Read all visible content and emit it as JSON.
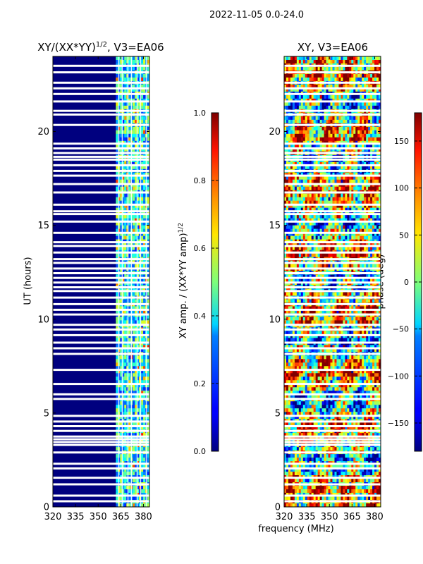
{
  "figure": {
    "suptitle": "2022-11-05 0.0-24.0"
  },
  "chart_data": [
    {
      "type": "heatmap",
      "name": "amplitude-panel",
      "title_main": "XY/(XX*YY)",
      "title_sup": "1/2",
      "title_rest": ", V3=EA06",
      "ylabel": "UT (hours)",
      "xlabel": "",
      "xlim": [
        320,
        384
      ],
      "ylim": [
        0,
        24
      ],
      "xticks": [
        320,
        335,
        350,
        365,
        380
      ],
      "yticks": [
        0,
        5,
        10,
        15,
        20
      ],
      "colormap": "jet",
      "colorbar": {
        "label_main": "XY amp. / (XX*YY amp)",
        "label_sup": "1/2",
        "range": [
          0.0,
          1.0
        ],
        "ticks": [
          "0.0",
          "0.2",
          "0.4",
          "0.6",
          "0.8",
          "1.0"
        ],
        "tick_values": [
          0.0,
          0.2,
          0.4,
          0.6,
          0.8,
          1.0
        ]
      },
      "band_edges_mhz": [
        361,
        383
      ],
      "flagged_ut_hours": [
        0.3,
        0.6,
        1.2,
        1.55,
        2.05,
        2.3,
        2.9,
        3.3,
        3.45,
        3.6,
        3.75,
        4.05,
        4.3,
        4.55,
        4.85,
        5.75,
        6.0,
        6.55,
        7.3,
        8.15,
        8.45,
        8.75,
        9.15,
        9.45,
        9.7,
        10.25,
        10.5,
        10.8,
        11.15,
        11.5,
        11.7,
        11.95,
        12.2,
        12.45,
        12.7,
        13.0,
        13.2,
        13.55,
        13.9,
        14.1,
        14.6,
        15.2,
        15.6,
        15.75,
        16.1,
        16.75,
        17.2,
        17.65,
        17.9,
        18.2,
        18.5,
        18.65,
        18.85,
        19.1,
        19.35,
        20.35,
        20.9,
        21.1,
        21.6,
        22.0,
        22.3,
        22.6,
        23.15,
        23.5
      ]
    },
    {
      "type": "heatmap",
      "name": "phase-panel",
      "title_main": "XY, V3=EA06",
      "ylabel": "",
      "xlabel": "frequency (MHz)",
      "xlim": [
        320,
        384
      ],
      "ylim": [
        0,
        24
      ],
      "xticks": [
        320,
        335,
        350,
        365,
        380
      ],
      "yticks": [
        0,
        5,
        10,
        15,
        20
      ],
      "colormap": "jet",
      "colorbar": {
        "label_main": "phase (deg)",
        "range": [
          -180,
          180
        ],
        "ticks": [
          "−150",
          "−100",
          "−50",
          "0",
          "50",
          "100",
          "150"
        ],
        "tick_values": [
          -150,
          -100,
          -50,
          0,
          50,
          100,
          150
        ]
      },
      "flagged_ut_hours": [
        0.3,
        0.6,
        1.2,
        1.55,
        2.05,
        2.3,
        2.9,
        3.3,
        3.45,
        3.6,
        3.75,
        4.05,
        4.3,
        4.55,
        4.85,
        5.75,
        6.0,
        6.55,
        7.3,
        8.15,
        8.45,
        8.75,
        9.15,
        9.45,
        9.7,
        10.25,
        10.5,
        10.8,
        11.15,
        11.5,
        11.7,
        11.95,
        12.2,
        12.45,
        12.7,
        13.0,
        13.2,
        13.55,
        13.9,
        14.1,
        14.6,
        15.2,
        15.6,
        15.75,
        16.1,
        16.75,
        17.2,
        17.65,
        17.9,
        18.2,
        18.5,
        18.65,
        18.85,
        19.1,
        19.35,
        20.35,
        20.9,
        21.1,
        21.6,
        22.0,
        22.3,
        22.6,
        23.15,
        23.5
      ]
    }
  ]
}
